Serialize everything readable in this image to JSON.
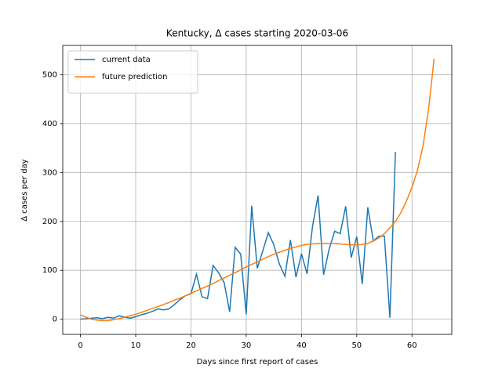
{
  "chart_data": {
    "type": "line",
    "title": "Kentucky, Δ cases starting 2020-03-06",
    "x_label": "Days since first report of cases",
    "y_label": "Δ cases per day",
    "xlim": [
      -3.2,
      67.2
    ],
    "ylim": [
      -31,
      560
    ],
    "xticks": [
      0,
      10,
      20,
      30,
      40,
      50,
      60
    ],
    "yticks": [
      0,
      100,
      200,
      300,
      400,
      500
    ],
    "grid": true,
    "legend": "upper left",
    "series": [
      {
        "name": "current data",
        "color": "#1f77b4",
        "x": [
          0,
          1,
          2,
          3,
          4,
          5,
          6,
          7,
          8,
          9,
          10,
          11,
          12,
          13,
          14,
          15,
          16,
          17,
          18,
          19,
          20,
          21,
          22,
          23,
          24,
          25,
          26,
          27,
          28,
          29,
          30,
          31,
          32,
          33,
          34,
          35,
          36,
          37,
          38,
          39,
          40,
          41,
          42,
          43,
          44,
          45,
          46,
          47,
          48,
          49,
          50,
          51,
          52,
          53,
          54,
          55,
          56,
          57
        ],
        "values": [
          0,
          1,
          2,
          3,
          1,
          4,
          2,
          7,
          4,
          2,
          5,
          9,
          12,
          16,
          21,
          19,
          21,
          30,
          40,
          48,
          52,
          92,
          46,
          42,
          110,
          95,
          75,
          15,
          147,
          133,
          10,
          232,
          104,
          140,
          177,
          152,
          113,
          88,
          162,
          86,
          134,
          93,
          190,
          253,
          91,
          143,
          180,
          175,
          231,
          126,
          169,
          72,
          229,
          160,
          170,
          170,
          3,
          342
        ]
      },
      {
        "name": "future prediction",
        "color": "#ff7f0e",
        "x": [
          0,
          1,
          2,
          3,
          4,
          5,
          6,
          7,
          8,
          9,
          10,
          11,
          12,
          13,
          14,
          15,
          16,
          17,
          18,
          19,
          20,
          21,
          22,
          23,
          24,
          25,
          26,
          27,
          28,
          29,
          30,
          31,
          32,
          33,
          34,
          35,
          36,
          37,
          38,
          39,
          40,
          41,
          42,
          43,
          44,
          45,
          46,
          47,
          48,
          49,
          50,
          51,
          52,
          53,
          54,
          55,
          56,
          57,
          58,
          59,
          60,
          61,
          62,
          63,
          64
        ],
        "values": [
          9,
          4,
          0,
          -2,
          -3,
          -3,
          -1,
          1,
          4,
          7,
          10,
          14,
          18,
          22,
          26,
          30,
          34,
          39,
          43,
          48,
          53,
          58,
          63,
          68,
          73,
          79,
          84,
          90,
          95,
          101,
          107,
          112,
          117,
          123,
          128,
          133,
          137,
          141,
          145,
          148,
          151,
          153,
          154,
          155,
          155,
          155,
          155,
          154,
          153,
          152,
          152,
          153,
          155,
          160,
          166,
          175,
          187,
          200,
          218,
          242,
          270,
          305,
          355,
          430,
          533
        ]
      }
    ]
  }
}
